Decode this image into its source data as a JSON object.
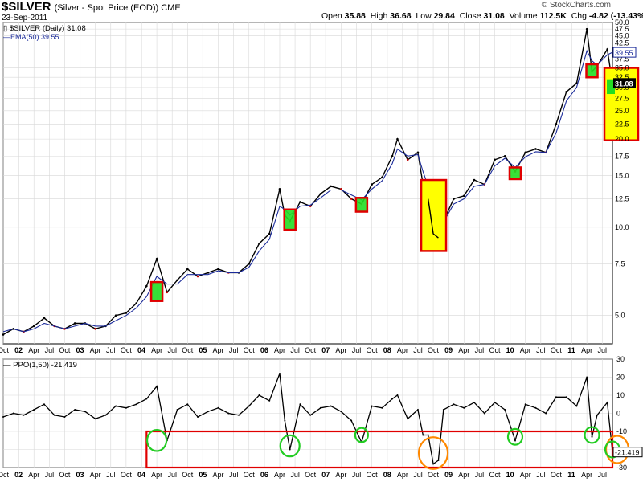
{
  "header": {
    "symbol": "$SILVER",
    "description": "(Silver - Spot Price (EOD)) CME",
    "date": "23-Sep-2011",
    "credit": "© StockCharts.com",
    "open_label": "Open",
    "open": "35.88",
    "high_label": "High",
    "high": "36.68",
    "low_label": "Low",
    "low": "29.84",
    "close_label": "Close",
    "close": "31.08",
    "volume_label": "Volume",
    "volume": "112.5K",
    "chg_label": "Chg",
    "chg": "-4.82 (-13.43%)"
  },
  "legend": {
    "price": "$SILVER (Daily) 31.08",
    "ema": "EMA(50) 39.55",
    "ppo": "PPO(1,50) -21.419"
  },
  "chart_data": [
    {
      "type": "line",
      "panel": "price",
      "scale": "log",
      "ylim": [
        4.0,
        50.0
      ],
      "y_ticks": [
        "5.0",
        "7.5",
        "10.0",
        "12.5",
        "15.0",
        "17.5",
        "20.0",
        "22.5",
        "25.0",
        "27.5",
        "30.0",
        "32.5",
        "35.0",
        "37.5",
        "40.0",
        "42.5",
        "45.0",
        "47.5",
        "50.0"
      ],
      "current_label": "31.08",
      "ema_label": "39.55",
      "x": [
        "2001-10",
        "2001-12",
        "2002-02",
        "2002-04",
        "2002-06",
        "2002-08",
        "2002-10",
        "2002-12",
        "2003-02",
        "2003-04",
        "2003-06",
        "2003-08",
        "2003-10",
        "2003-12",
        "2004-02",
        "2004-04",
        "2004-06",
        "2004-08",
        "2004-10",
        "2004-12",
        "2005-02",
        "2005-04",
        "2005-06",
        "2005-08",
        "2005-10",
        "2005-12",
        "2006-02",
        "2006-04",
        "2006-05",
        "2006-06",
        "2006-08",
        "2006-10",
        "2006-12",
        "2007-02",
        "2007-04",
        "2007-06",
        "2007-08",
        "2007-10",
        "2007-12",
        "2008-02",
        "2008-03",
        "2008-05",
        "2008-07",
        "2008-08",
        "2008-09",
        "2008-10",
        "2008-11",
        "2008-12",
        "2009-02",
        "2009-04",
        "2009-06",
        "2009-08",
        "2009-10",
        "2009-12",
        "2010-02",
        "2010-04",
        "2010-06",
        "2010-08",
        "2010-10",
        "2010-12",
        "2011-02",
        "2011-04",
        "2011-05",
        "2011-06",
        "2011-08",
        "2011-09"
      ],
      "series": [
        {
          "name": "$SILVER (Daily)",
          "color": "#000000",
          "values": [
            4.3,
            4.5,
            4.4,
            4.6,
            4.9,
            4.6,
            4.5,
            4.7,
            4.7,
            4.5,
            4.6,
            5.0,
            5.1,
            5.5,
            6.3,
            7.8,
            6.0,
            6.6,
            7.2,
            6.8,
            7.0,
            7.2,
            7.0,
            7.0,
            7.5,
            8.8,
            9.5,
            13.5,
            11.0,
            10.5,
            12.2,
            11.8,
            13.0,
            13.8,
            13.5,
            12.5,
            12.0,
            14.0,
            14.8,
            17.5,
            20.0,
            17.0,
            18.0,
            14.0,
            12.5,
            9.5,
            9.2,
            10.5,
            12.5,
            12.8,
            14.5,
            14.0,
            17.0,
            17.5,
            15.5,
            18.0,
            18.5,
            18.0,
            22.5,
            29.0,
            31.0,
            47.5,
            34.0,
            35.5,
            40.5,
            31.08
          ]
        },
        {
          "name": "EMA(50)",
          "color": "#1a2a9a",
          "values": [
            4.4,
            4.5,
            4.4,
            4.5,
            4.7,
            4.6,
            4.5,
            4.6,
            4.7,
            4.6,
            4.6,
            4.8,
            5.0,
            5.3,
            5.8,
            6.8,
            6.4,
            6.4,
            6.9,
            6.9,
            6.9,
            7.1,
            7.0,
            7.0,
            7.3,
            8.3,
            9.1,
            11.8,
            11.5,
            11.0,
            11.8,
            11.9,
            12.6,
            13.4,
            13.4,
            12.9,
            12.4,
            13.5,
            14.4,
            16.5,
            18.5,
            17.5,
            17.7,
            15.5,
            13.8,
            11.0,
            10.0,
            10.4,
            12.0,
            12.5,
            13.8,
            14.0,
            16.2,
            17.2,
            16.0,
            17.4,
            18.1,
            18.0,
            21.0,
            27.0,
            30.0,
            40.0,
            37.0,
            35.8,
            38.8,
            39.55
          ]
        }
      ],
      "annotations": [
        "box 2004-04",
        "box 2006-06",
        "box 2007-08",
        "box 2008-10",
        "box 2010-02",
        "box 2011-05",
        "box 2011-09"
      ]
    },
    {
      "type": "line",
      "panel": "indicator",
      "title": "PPO(1,50) -21.419",
      "ylim": [
        -30,
        30
      ],
      "y_ticks": [
        "30",
        "20",
        "10",
        "0",
        "-10",
        "-20",
        "-30"
      ],
      "current_label": "-21.419",
      "series": [
        {
          "name": "PPO(1,50)",
          "color": "#000000",
          "values": [
            -2,
            0,
            -1,
            2,
            5,
            -1,
            -2,
            2,
            1,
            -3,
            -1,
            4,
            3,
            5,
            8,
            15,
            -15,
            2,
            5,
            -2,
            1,
            3,
            0,
            -1,
            4,
            10,
            7,
            22,
            -4,
            -20,
            5,
            -1,
            3,
            4,
            1,
            -4,
            -16,
            4,
            3,
            8,
            10,
            -3,
            2,
            -12,
            -12,
            -28,
            -26,
            2,
            5,
            3,
            6,
            0,
            6,
            2,
            -15,
            5,
            3,
            0,
            9,
            9,
            4,
            20,
            -13,
            -1,
            6,
            -21.419
          ]
        }
      ],
      "annotations": [
        "circle 2004-04",
        "circle 2006-06",
        "circle 2007-08",
        "circle 2008-10",
        "circle 2010-02",
        "circle 2011-05",
        "circle 2011-09"
      ]
    }
  ],
  "x_axis": {
    "labels": [
      "Oct",
      "02",
      "Apr",
      "Jul",
      "Oct",
      "03",
      "Apr",
      "Jul",
      "Oct",
      "04",
      "Apr",
      "Jul",
      "Oct",
      "05",
      "Apr",
      "Jul",
      "Oct",
      "06",
      "Apr",
      "Jul",
      "Oct",
      "07",
      "Apr",
      "Jul",
      "Oct",
      "08",
      "Apr",
      "Jul",
      "Oct",
      "09",
      "Apr",
      "Jul",
      "Oct",
      "10",
      "Apr",
      "Jul",
      "Oct",
      "11",
      "Apr",
      "Jul"
    ],
    "bold": [
      "02",
      "03",
      "04",
      "05",
      "06",
      "07",
      "08",
      "09",
      "10",
      "11"
    ]
  },
  "colors": {
    "grid": "#d8d8d8",
    "ema": "#1a2a9a",
    "box_border": "#e00000",
    "box_green": "#22dd22",
    "box_yellow": "#ffff00",
    "circle_green": "#22cc22",
    "circle_orange": "#ff8800",
    "down_tick": "#c00000"
  }
}
